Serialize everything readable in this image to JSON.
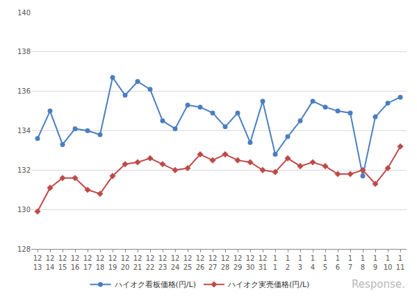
{
  "chart_data": {
    "type": "line",
    "categories": [
      "12\n13",
      "12\n14",
      "12\n15",
      "12\n16",
      "12\n17",
      "12\n18",
      "12\n19",
      "12\n20",
      "12\n21",
      "12\n22",
      "12\n23",
      "12\n24",
      "12\n25",
      "12\n26",
      "12\n27",
      "12\n28",
      "12\n29",
      "12\n30",
      "12\n31",
      "1\n1",
      "1\n2",
      "1\n3",
      "1\n4",
      "1\n5",
      "1\n6",
      "1\n7",
      "1\n8",
      "1\n9",
      "1\n10",
      "1\n11"
    ],
    "series": [
      {
        "name": "ハイオク看板価格(円/L)",
        "color": "#4a7ebf",
        "marker": "circle",
        "values": [
          133.6,
          135.0,
          133.3,
          134.1,
          134.0,
          133.8,
          136.7,
          135.8,
          136.5,
          136.1,
          134.5,
          134.1,
          135.3,
          135.2,
          134.9,
          134.2,
          134.9,
          133.4,
          135.5,
          132.8,
          133.7,
          134.5,
          135.5,
          135.2,
          135.0,
          134.9,
          131.7,
          134.7,
          135.4,
          135.7
        ]
      },
      {
        "name": "ハイオク実売価格(円/L)",
        "color": "#be4b48",
        "marker": "diamond",
        "values": [
          129.9,
          131.1,
          131.6,
          131.6,
          131.0,
          130.8,
          131.7,
          132.3,
          132.4,
          132.6,
          132.3,
          132.0,
          132.1,
          132.8,
          132.5,
          132.8,
          132.5,
          132.4,
          132.0,
          131.9,
          132.6,
          132.2,
          132.4,
          132.2,
          131.8,
          131.8,
          132.0,
          131.3,
          132.1,
          133.2
        ]
      }
    ],
    "ylim": [
      128,
      140
    ],
    "yticks": [
      128,
      130,
      132,
      134,
      136,
      138,
      140
    ],
    "grid": true,
    "legend": "bottom",
    "annotations": [
      {
        "text": "Response."
      }
    ]
  }
}
